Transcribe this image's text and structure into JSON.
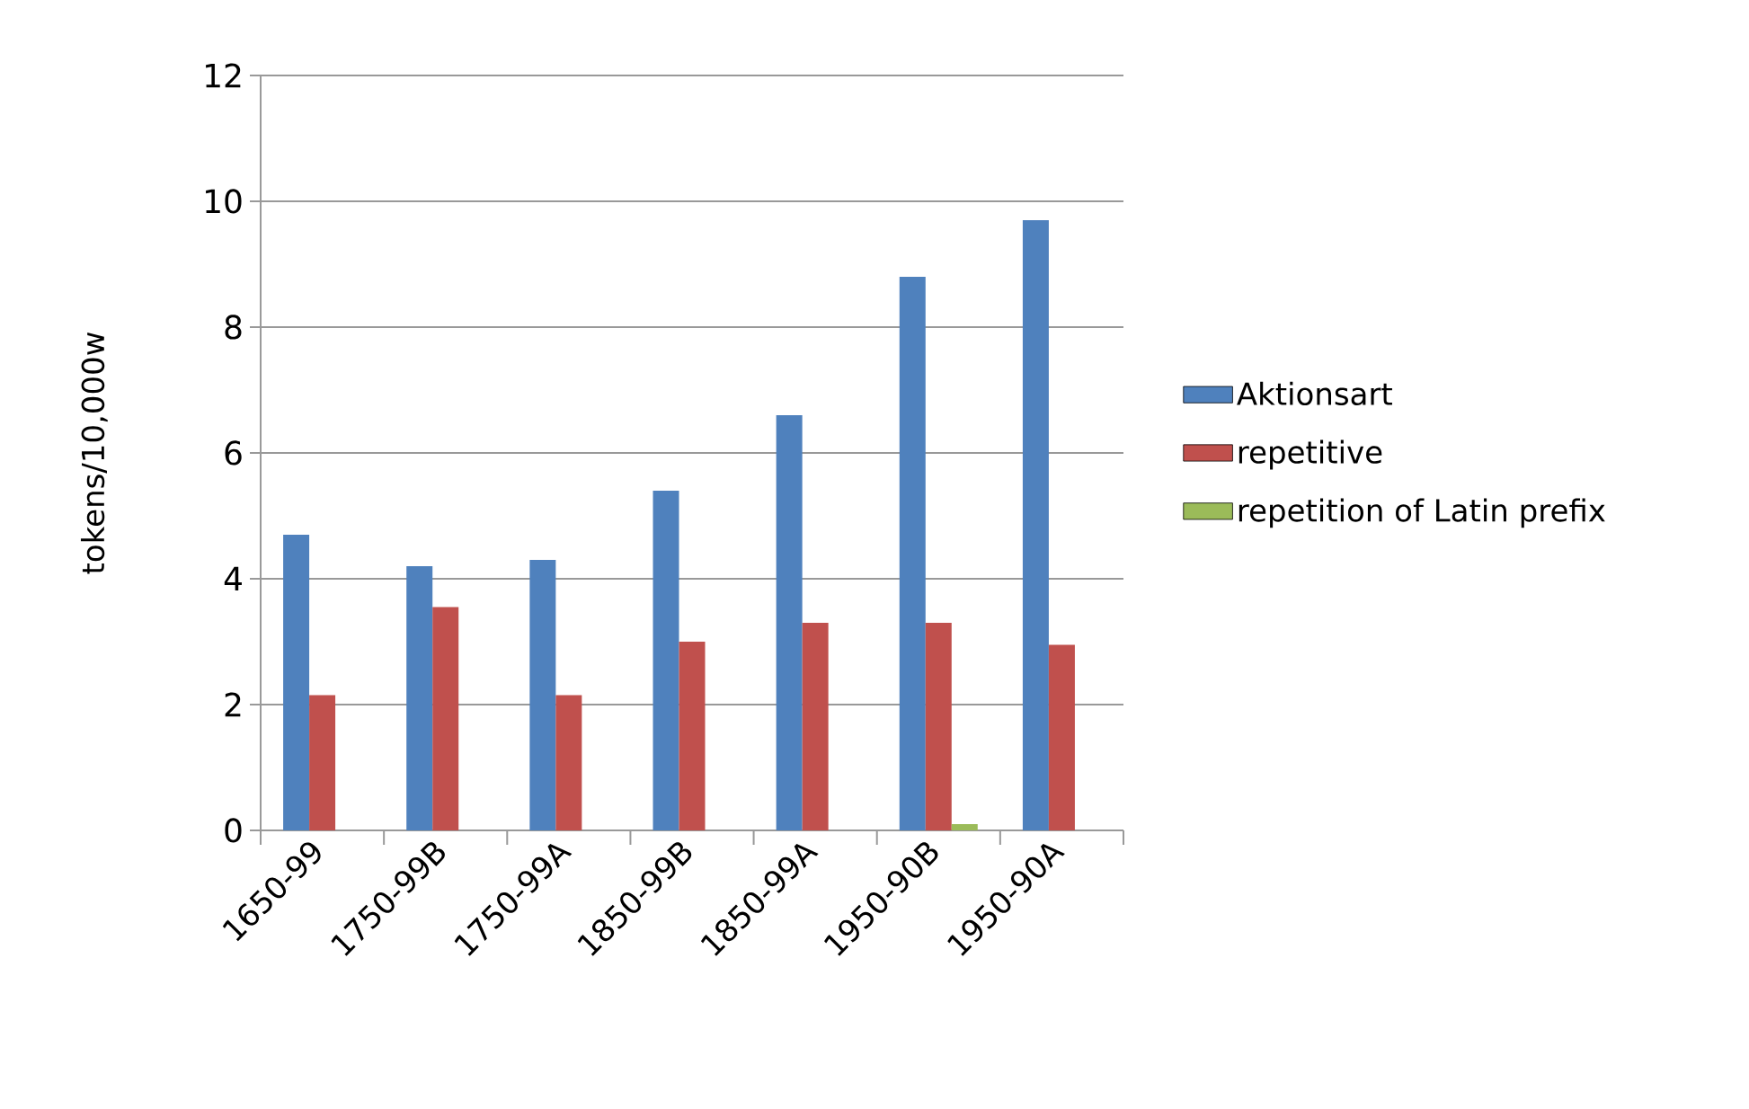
{
  "chart_data": {
    "type": "bar",
    "ylabel": "tokens/10,000w",
    "categories": [
      "1650-99",
      "1750-99B",
      "1750-99A",
      "1850-99B",
      "1850-99A",
      "1950-90B",
      "1950-90A"
    ],
    "series": [
      {
        "name": "Aktionsart",
        "color": "#4f81bd",
        "values": [
          4.7,
          4.2,
          4.3,
          5.4,
          6.6,
          8.8,
          9.7
        ]
      },
      {
        "name": "repetitive",
        "color": "#c0504d",
        "values": [
          2.15,
          3.55,
          2.15,
          3.0,
          3.3,
          3.3,
          2.95
        ]
      },
      {
        "name": "repetition of Latin prefix",
        "color": "#9bbb59",
        "values": [
          0,
          0,
          0,
          0,
          0,
          0.1,
          0
        ]
      }
    ],
    "ylim": [
      0,
      12
    ],
    "yticks": [
      0,
      2,
      4,
      6,
      8,
      10,
      12
    ],
    "grid": "y",
    "legend": "right"
  }
}
